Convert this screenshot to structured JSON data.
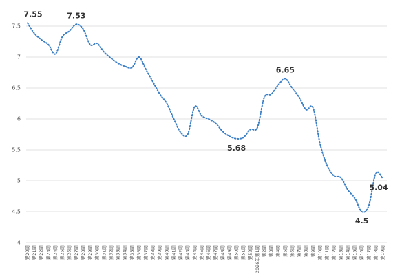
{
  "chart_data": {
    "type": "line",
    "categories": [
      "第20周",
      "第21周",
      "第22周",
      "第23周",
      "第24周",
      "第25周",
      "第26周",
      "第27周",
      "第28周",
      "第29周",
      "第30周",
      "第31周",
      "第32周",
      "第33周",
      "第34周",
      "第35周",
      "第36周",
      "第37周",
      "第38周",
      "第39周",
      "第40周",
      "第41周",
      "第42周",
      "第43周",
      "第44周",
      "第45周",
      "第46周",
      "第47周",
      "第48周",
      "第49周",
      "第50周",
      "第51周",
      "第52周",
      "2026年第1周",
      "第2周",
      "第3周",
      "第4周",
      "第5周",
      "第6周",
      "第7周",
      "第8周",
      "第9周",
      "第10周",
      "第11周",
      "第12周",
      "第13周",
      "第14周",
      "第15周",
      "第16周",
      "第17周",
      "第18周",
      "第19周"
    ],
    "series": [
      {
        "color": "#3b7fc6",
        "values": [
          7.55,
          7.38,
          7.28,
          7.2,
          7.05,
          7.33,
          7.42,
          7.53,
          7.45,
          7.2,
          7.22,
          7.08,
          6.98,
          6.9,
          6.85,
          6.83,
          7.0,
          6.8,
          6.6,
          6.4,
          6.25,
          6.0,
          5.78,
          5.75,
          6.2,
          6.05,
          6.0,
          5.93,
          5.8,
          5.72,
          5.68,
          5.7,
          5.83,
          5.86,
          6.35,
          6.4,
          6.55,
          6.65,
          6.5,
          6.35,
          6.15,
          6.18,
          5.6,
          5.25,
          5.08,
          5.05,
          4.85,
          4.72,
          4.5,
          4.6,
          5.12,
          5.04
        ],
        "value_labels": [
          "7.55",
          null,
          null,
          null,
          null,
          null,
          null,
          "7.53",
          null,
          null,
          null,
          null,
          null,
          null,
          null,
          null,
          null,
          null,
          null,
          null,
          null,
          null,
          null,
          null,
          null,
          null,
          null,
          null,
          null,
          null,
          "5.68",
          null,
          null,
          null,
          null,
          null,
          null,
          "6.65",
          null,
          null,
          null,
          null,
          null,
          null,
          null,
          null,
          null,
          null,
          "4.5",
          null,
          null,
          "5.04"
        ]
      }
    ],
    "ylim": [
      4,
      7.5
    ],
    "yticks": [
      4,
      4.5,
      5,
      5.5,
      6,
      6.5,
      7,
      7.5
    ],
    "grid": true
  }
}
